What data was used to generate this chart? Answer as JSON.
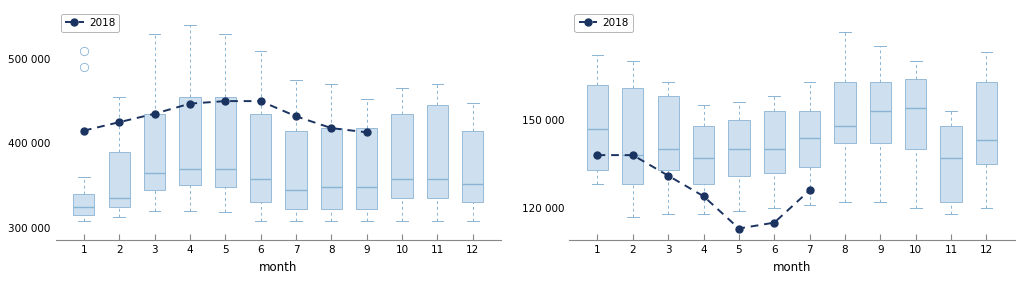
{
  "left_chart": {
    "xlabel": "month",
    "ylim": [
      285000,
      560000
    ],
    "yticks": [
      300000,
      400000,
      500000
    ],
    "ytick_labels": [
      "300 000",
      "400 000",
      "500 000"
    ],
    "months": [
      1,
      2,
      3,
      4,
      5,
      6,
      7,
      8,
      9,
      10,
      11,
      12
    ],
    "line_2018": [
      415000,
      425000,
      435000,
      447000,
      450000,
      450000,
      432000,
      418000,
      413000,
      null,
      null,
      null
    ],
    "boxes": [
      {
        "month": 1,
        "whisker_low": 308000,
        "q1": 315000,
        "median": 325000,
        "q3": 340000,
        "whisker_high": 360000,
        "outlier_high1": 490000,
        "outlier_high2": 510000
      },
      {
        "month": 2,
        "whisker_low": 312000,
        "q1": 325000,
        "median": 335000,
        "q3": 390000,
        "whisker_high": 455000,
        "outlier_high1": null,
        "outlier_high2": null
      },
      {
        "month": 3,
        "whisker_low": 320000,
        "q1": 345000,
        "median": 365000,
        "q3": 435000,
        "whisker_high": 530000,
        "outlier_high1": null,
        "outlier_high2": null
      },
      {
        "month": 4,
        "whisker_low": 320000,
        "q1": 350000,
        "median": 370000,
        "q3": 455000,
        "whisker_high": 540000,
        "outlier_high1": null,
        "outlier_high2": null
      },
      {
        "month": 5,
        "whisker_low": 318000,
        "q1": 348000,
        "median": 370000,
        "q3": 455000,
        "whisker_high": 530000,
        "outlier_high1": null,
        "outlier_high2": null
      },
      {
        "month": 6,
        "whisker_low": 308000,
        "q1": 330000,
        "median": 358000,
        "q3": 435000,
        "whisker_high": 510000,
        "outlier_high1": null,
        "outlier_high2": null
      },
      {
        "month": 7,
        "whisker_low": 308000,
        "q1": 322000,
        "median": 345000,
        "q3": 415000,
        "whisker_high": 475000,
        "outlier_high1": null,
        "outlier_high2": null
      },
      {
        "month": 8,
        "whisker_low": 308000,
        "q1": 322000,
        "median": 348000,
        "q3": 418000,
        "whisker_high": 470000,
        "outlier_high1": null,
        "outlier_high2": null
      },
      {
        "month": 9,
        "whisker_low": 308000,
        "q1": 322000,
        "median": 348000,
        "q3": 418000,
        "whisker_high": 452000,
        "outlier_high1": null,
        "outlier_high2": null
      },
      {
        "month": 10,
        "whisker_low": 308000,
        "q1": 335000,
        "median": 358000,
        "q3": 435000,
        "whisker_high": 465000,
        "outlier_high1": null,
        "outlier_high2": null
      },
      {
        "month": 11,
        "whisker_low": 308000,
        "q1": 335000,
        "median": 358000,
        "q3": 445000,
        "whisker_high": 470000,
        "outlier_high1": null,
        "outlier_high2": null
      },
      {
        "month": 12,
        "whisker_low": 308000,
        "q1": 330000,
        "median": 352000,
        "q3": 415000,
        "whisker_high": 448000,
        "outlier_high1": null,
        "outlier_high2": null
      }
    ]
  },
  "right_chart": {
    "xlabel": "month",
    "ylim": [
      109000,
      188000
    ],
    "yticks": [
      120000,
      150000
    ],
    "ytick_labels": [
      "120 000",
      "150 000"
    ],
    "months": [
      1,
      2,
      3,
      4,
      5,
      6,
      7,
      8,
      9,
      10,
      11,
      12
    ],
    "line_2018": [
      138000,
      138000,
      131000,
      124000,
      113000,
      115000,
      126000,
      null,
      null,
      null,
      null,
      null
    ],
    "boxes": [
      {
        "month": 1,
        "whisker_low": 128000,
        "q1": 133000,
        "median": 147000,
        "q3": 162000,
        "whisker_high": 172000
      },
      {
        "month": 2,
        "whisker_low": 117000,
        "q1": 128000,
        "median": 138000,
        "q3": 161000,
        "whisker_high": 170000
      },
      {
        "month": 3,
        "whisker_low": 118000,
        "q1": 133000,
        "median": 140000,
        "q3": 158000,
        "whisker_high": 163000
      },
      {
        "month": 4,
        "whisker_low": 118000,
        "q1": 128000,
        "median": 137000,
        "q3": 148000,
        "whisker_high": 155000
      },
      {
        "month": 5,
        "whisker_low": 119000,
        "q1": 131000,
        "median": 140000,
        "q3": 150000,
        "whisker_high": 156000
      },
      {
        "month": 6,
        "whisker_low": 120000,
        "q1": 132000,
        "median": 140000,
        "q3": 153000,
        "whisker_high": 158000
      },
      {
        "month": 7,
        "whisker_low": 121000,
        "q1": 134000,
        "median": 144000,
        "q3": 153000,
        "whisker_high": 163000
      },
      {
        "month": 8,
        "whisker_low": 122000,
        "q1": 142000,
        "median": 148000,
        "q3": 163000,
        "whisker_high": 180000
      },
      {
        "month": 9,
        "whisker_low": 122000,
        "q1": 142000,
        "median": 153000,
        "q3": 163000,
        "whisker_high": 175000
      },
      {
        "month": 10,
        "whisker_low": 120000,
        "q1": 140000,
        "median": 154000,
        "q3": 164000,
        "whisker_high": 170000
      },
      {
        "month": 11,
        "whisker_low": 118000,
        "q1": 122000,
        "median": 137000,
        "q3": 148000,
        "whisker_high": 153000
      },
      {
        "month": 12,
        "whisker_low": 120000,
        "q1": 135000,
        "median": 143000,
        "q3": 163000,
        "whisker_high": 173000
      }
    ]
  },
  "box_color": "#cee0ef",
  "box_edge_color": "#8ab4d4",
  "median_color": "#8ab4d4",
  "whisker_color": "#8ab4d4",
  "line_color": "#1b3360",
  "line_marker": "o",
  "line_style": "--",
  "line_width": 1.4,
  "marker_size": 5,
  "legend_label": "2018",
  "box_width": 0.6,
  "background_color": "#ffffff",
  "tick_fontsize": 7.5,
  "label_fontsize": 8.5
}
